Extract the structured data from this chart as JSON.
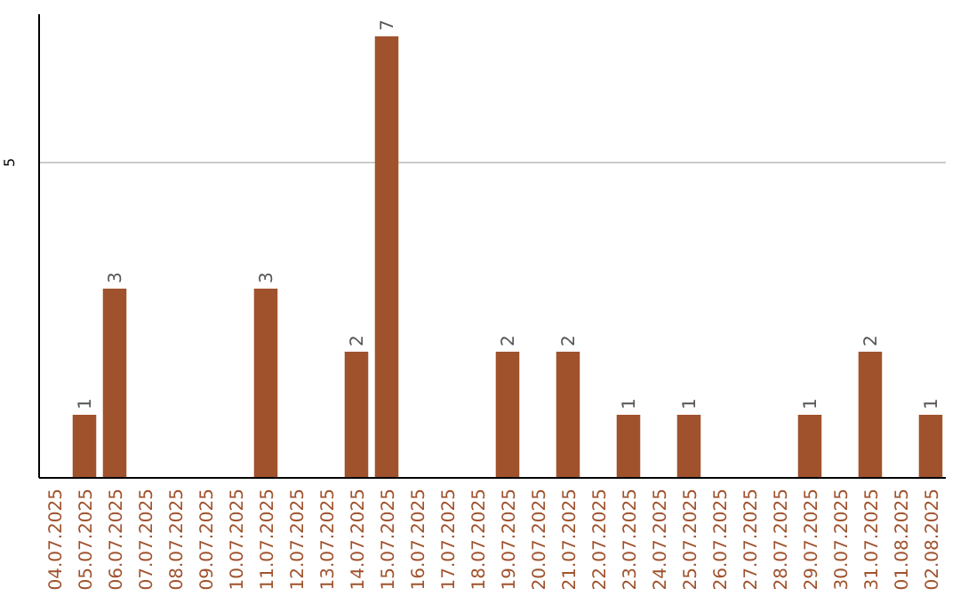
{
  "chart_data": {
    "type": "bar",
    "categories": [
      "04.07.2025",
      "05.07.2025",
      "06.07.2025",
      "07.07.2025",
      "08.07.2025",
      "09.07.2025",
      "10.07.2025",
      "11.07.2025",
      "12.07.2025",
      "13.07.2025",
      "14.07.2025",
      "15.07.2025",
      "16.07.2025",
      "17.07.2025",
      "18.07.2025",
      "19.07.2025",
      "20.07.2025",
      "21.07.2025",
      "22.07.2025",
      "23.07.2025",
      "24.07.2025",
      "25.07.2025",
      "26.07.2025",
      "27.07.2025",
      "28.07.2025",
      "29.07.2025",
      "30.07.2025",
      "31.07.2025",
      "01.08.2025",
      "02.08.2025"
    ],
    "values": [
      0,
      1,
      3,
      0,
      0,
      0,
      0,
      3,
      0,
      0,
      2,
      7,
      0,
      0,
      0,
      2,
      0,
      2,
      0,
      1,
      0,
      1,
      0,
      0,
      0,
      1,
      0,
      2,
      0,
      1
    ],
    "value_labels": [
      null,
      "1",
      "3",
      null,
      null,
      null,
      null,
      "3",
      null,
      null,
      "2",
      "7",
      null,
      null,
      null,
      "2",
      null,
      "2",
      null,
      "1",
      null,
      "1",
      null,
      null,
      null,
      "1",
      null,
      "2",
      null,
      "1"
    ],
    "color": "#a0522d",
    "ylim": [
      0,
      7.35
    ],
    "yticks": [
      5
    ],
    "grid": "y"
  }
}
